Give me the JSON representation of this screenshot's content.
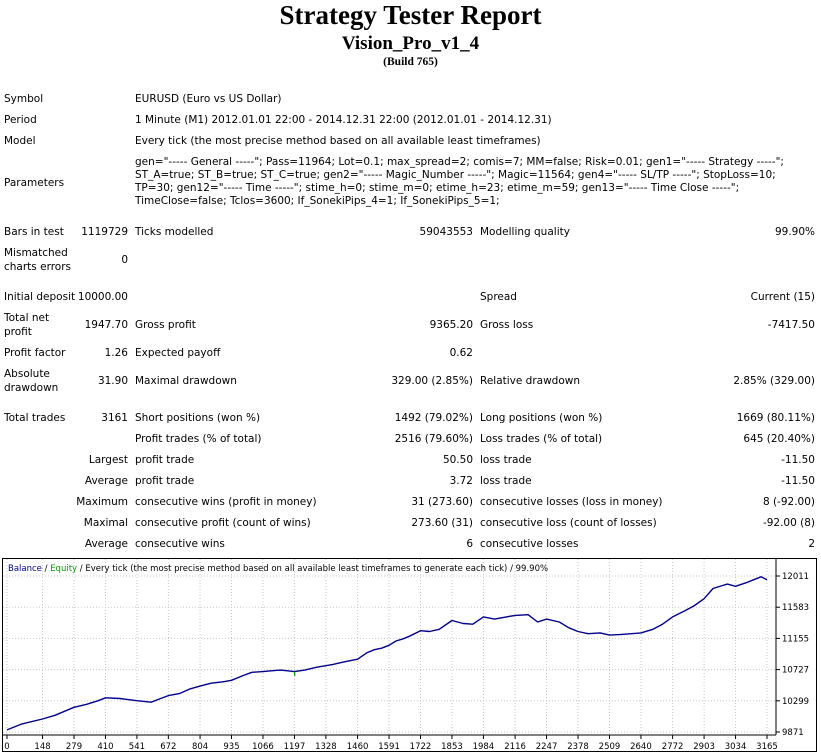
{
  "report": {
    "title": "Strategy Tester Report",
    "expert": "Vision_Pro_v1_4",
    "build": "(Build 765)"
  },
  "info": {
    "symbol_label": "Symbol",
    "symbol_value": "EURUSD (Euro vs US Dollar)",
    "period_label": "Period",
    "period_value": "1 Minute (M1) 2012.01.01 22:00 - 2014.12.31 22:00 (2012.01.01 - 2014.12.31)",
    "model_label": "Model",
    "model_value": "Every tick (the most precise method based on all available least timeframes)",
    "parameters_label": "Parameters",
    "parameters_value": "gen=\"----- General -----\"; Pass=11964; Lot=0.1; max_spread=2; comis=7; MM=false; Risk=0.01; gen1=\"----- Strategy -----\"; ST_A=true; ST_B=true; ST_C=true; gen2=\"----- Magic_Number -----\"; Magic=11564; gen4=\"----- SL/TP -----\"; StopLoss=10; TP=30; gen12=\"----- Time -----\"; stime_h=0; stime_m=0; etime_h=23; etime_m=59; gen13=\"----- Time Close -----\"; TimeClose=false; Tclos=3600; If_SonekiPips_4=1; If_SonekiPips_5=1;"
  },
  "stats": {
    "bars_label": "Bars in test",
    "bars_value": "1119729",
    "ticks_label": "Ticks modelled",
    "ticks_value": "59043553",
    "quality_label": "Modelling quality",
    "quality_value": "99.90%",
    "mismatch_label_1": "Mismatched",
    "mismatch_label_2": "charts errors",
    "mismatch_value": "0",
    "deposit_label": "Initial deposit",
    "deposit_value": "10000.00",
    "spread_label": "Spread",
    "spread_value": "Current (15)",
    "netprofit_label_1": "Total net",
    "netprofit_label_2": "profit",
    "netprofit_value": "1947.70",
    "grossprofit_label": "Gross profit",
    "grossprofit_value": "9365.20",
    "grossloss_label": "Gross loss",
    "grossloss_value": "-7417.50",
    "pf_label": "Profit factor",
    "pf_value": "1.26",
    "payoff_label": "Expected payoff",
    "payoff_value": "0.62",
    "absdd_label_1": "Absolute",
    "absdd_label_2": "drawdown",
    "absdd_value": "31.90",
    "maxdd_label": "Maximal drawdown",
    "maxdd_value": "329.00 (2.85%)",
    "reldd_label": "Relative drawdown",
    "reldd_value": "2.85% (329.00)",
    "trades_label": "Total trades",
    "trades_value": "3161",
    "short_label": "Short positions (won %)",
    "short_value": "1492 (79.02%)",
    "long_label": "Long positions (won %)",
    "long_value": "1669 (80.11%)",
    "profittrades_label": "Profit trades (% of total)",
    "profittrades_value": "2516 (79.60%)",
    "losstrades_label": "Loss trades (% of total)",
    "losstrades_value": "645 (20.40%)",
    "largest_label": "Largest",
    "largest_pt_label": "profit trade",
    "largest_pt_value": "50.50",
    "largest_lt_label": "loss trade",
    "largest_lt_value": "-11.50",
    "average_label": "Average",
    "average_pt_label": "profit trade",
    "average_pt_value": "3.72",
    "average_lt_label": "loss trade",
    "average_lt_value": "-11.50",
    "maximum_label": "Maximum",
    "maxconswins_label": "consecutive wins (profit in money)",
    "maxconswins_value": "31 (273.60)",
    "maxconslosses_label": "consecutive losses (loss in money)",
    "maxconslosses_value": "8 (-92.00)",
    "maximal_label": "Maximal",
    "maxconsprofit_label": "consecutive profit (count of wins)",
    "maxconsprofit_value": "273.60 (31)",
    "maxconsloss_label": "consecutive loss (count of losses)",
    "maxconsloss_value": "-92.00 (8)",
    "avgcons_label": "Average",
    "avgconswins_label": "consecutive wins",
    "avgconswins_value": "6",
    "avgconslosses_label": "consecutive losses",
    "avgconslosses_value": "2"
  },
  "colors": {
    "balance": "#00008b",
    "equity": "#00a000",
    "legend_text": "#00008b"
  },
  "chart_data": {
    "type": "line",
    "legend": {
      "balance": "Balance",
      "slash": " / ",
      "equity": "Equity",
      "rest": " / Every tick (the most precise method based on all available least timeframes to generate each tick)",
      "quality": " / 99.90%"
    },
    "x_ticks": [
      0,
      148,
      279,
      410,
      541,
      672,
      804,
      935,
      1066,
      1197,
      1328,
      1460,
      1591,
      1722,
      1853,
      1984,
      2116,
      2247,
      2378,
      2509,
      2640,
      2772,
      2903,
      3034,
      3165
    ],
    "x_tick_labels": [
      "0",
      "148",
      "279",
      "410",
      "541",
      "672",
      "804",
      "935",
      "1066",
      "1197",
      "1328",
      "1460",
      "1591",
      "1722",
      "1853",
      "1984",
      "2116",
      "2247",
      "2378",
      "2509",
      "2640",
      "2772",
      "2903",
      "3034",
      "3165"
    ],
    "y_ticks": [
      9871,
      10299,
      10727,
      11155,
      11583,
      12011
    ],
    "y_tick_labels": [
      "9871",
      "10299",
      "10727",
      "11155",
      "11583",
      "12011"
    ],
    "xlim": [
      0,
      3165
    ],
    "ylim": [
      9871,
      12011
    ],
    "series": [
      {
        "name": "Balance",
        "x": [
          0,
          60,
          148,
          200,
          279,
          330,
          380,
          410,
          470,
          541,
          600,
          640,
          672,
          720,
          760,
          804,
          850,
          900,
          935,
          980,
          1020,
          1066,
          1100,
          1140,
          1197,
          1240,
          1290,
          1328,
          1360,
          1400,
          1460,
          1500,
          1530,
          1560,
          1591,
          1620,
          1650,
          1680,
          1722,
          1760,
          1800,
          1853,
          1900,
          1940,
          1984,
          2030,
          2080,
          2116,
          2170,
          2210,
          2247,
          2300,
          2340,
          2378,
          2420,
          2470,
          2509,
          2560,
          2600,
          2640,
          2690,
          2730,
          2772,
          2820,
          2860,
          2903,
          2940,
          2980,
          3000,
          3034,
          3080,
          3110,
          3140,
          3165
        ],
        "values": [
          9900,
          9980,
          10050,
          10100,
          10210,
          10250,
          10300,
          10340,
          10330,
          10300,
          10280,
          10330,
          10370,
          10400,
          10460,
          10500,
          10540,
          10560,
          10580,
          10640,
          10690,
          10700,
          10710,
          10720,
          10700,
          10720,
          10760,
          10780,
          10800,
          10830,
          10870,
          10960,
          11000,
          11020,
          11060,
          11120,
          11150,
          11190,
          11260,
          11250,
          11280,
          11400,
          11360,
          11350,
          11450,
          11420,
          11450,
          11470,
          11480,
          11380,
          11420,
          11380,
          11300,
          11250,
          11220,
          11230,
          11200,
          11210,
          11220,
          11230,
          11280,
          11350,
          11450,
          11530,
          11600,
          11700,
          11840,
          11880,
          11900,
          11870,
          11920,
          11960,
          12000,
          11960
        ]
      },
      {
        "name": "Equity",
        "x": [
          1197,
          1199
        ],
        "values": [
          10700,
          10640
        ]
      }
    ]
  }
}
